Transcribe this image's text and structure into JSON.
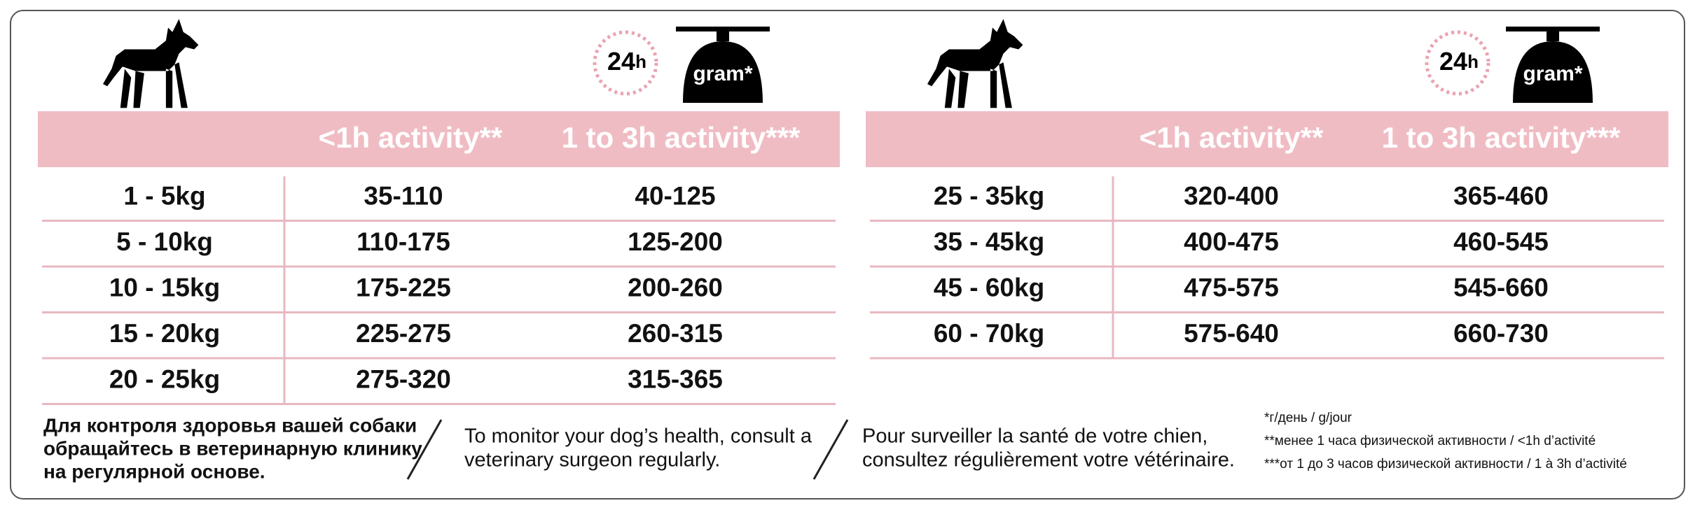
{
  "tables": [
    {
      "clock": {
        "number": "24",
        "unit": "h"
      },
      "scale_label": "gram*",
      "headers": [
        "<1h activity**",
        "1 to 3h activity***"
      ],
      "rows": [
        [
          "1 - 5kg",
          "35-110",
          "40-125"
        ],
        [
          "5 - 10kg",
          "110-175",
          "125-200"
        ],
        [
          "10 - 15kg",
          "175-225",
          "200-260"
        ],
        [
          "15 - 20kg",
          "225-275",
          "260-315"
        ],
        [
          "20 - 25kg",
          "275-320",
          "315-365"
        ]
      ]
    },
    {
      "clock": {
        "number": "24",
        "unit": "h"
      },
      "scale_label": "gram*",
      "headers": [
        "<1h activity**",
        "1 to 3h activity***"
      ],
      "rows": [
        [
          "25 - 35kg",
          "320-400",
          "365-460"
        ],
        [
          "35 - 45kg",
          "400-475",
          "460-545"
        ],
        [
          "45 - 60kg",
          "475-575",
          "545-660"
        ],
        [
          "60 - 70kg",
          "575-640",
          "660-730"
        ]
      ]
    }
  ],
  "notes": [
    [
      "Для контроля здоровья вашей собаки",
      "обращайтесь в ветеринарную клинику",
      "на регулярной основе."
    ],
    [
      "To monitor your dog’s health, consult a",
      "veterinary surgeon regularly."
    ],
    [
      "Pour surveiller la santé de votre chien,",
      "consultez régulièrement votre vétérinaire."
    ]
  ],
  "footnotes": [
    "*г/день / g/jour",
    "**менее 1 часа физической активности / <1h d’activité",
    "***от 1 до 3 часов физической активности / 1 à 3h d’activité"
  ]
}
